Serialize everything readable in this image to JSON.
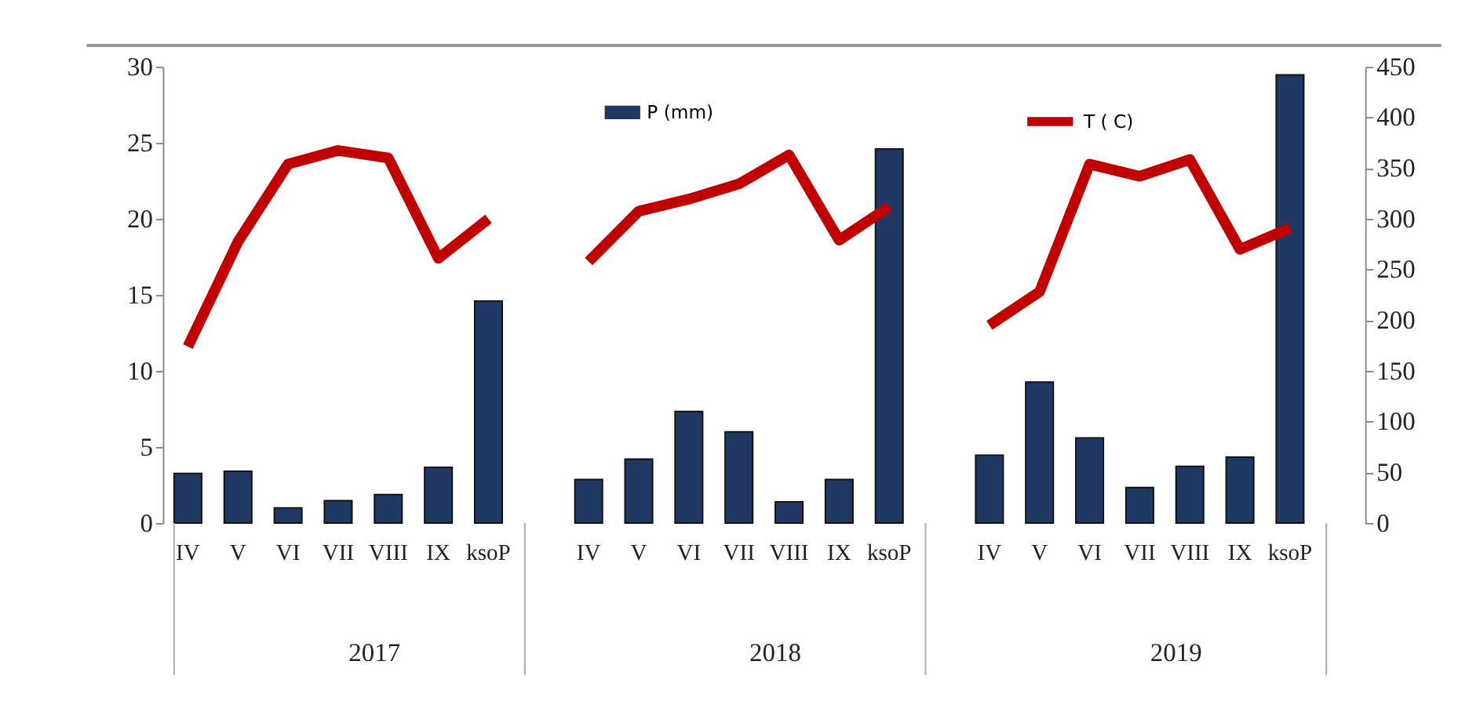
{
  "chart_data": {
    "type": "bar",
    "categories": [
      "IV",
      "V",
      "VI",
      "VII",
      "VIII",
      "IX",
      "ksoP",
      null,
      "IV",
      "V",
      "VI",
      "VII",
      "VIII",
      "IX",
      "ksoP",
      null,
      "IV",
      "V",
      "VI",
      "VII",
      "VIII",
      "IX",
      "ksoP",
      null
    ],
    "series": [
      {
        "name": "P (mm)",
        "axis": "y2",
        "color": "#203864",
        "values": [
          49,
          51,
          15,
          22,
          28,
          55,
          219,
          null,
          43,
          63,
          110,
          90,
          21,
          43,
          369,
          null,
          67,
          139,
          84,
          35,
          56,
          65,
          442,
          null
        ]
      },
      {
        "name": "T ( C)",
        "type": "line",
        "color": "#c00000",
        "values": [
          11.6,
          18.5,
          23.6,
          24.5,
          24.0,
          17.4,
          20.0,
          null,
          17.2,
          20.5,
          21.3,
          22.3,
          24.2,
          18.6,
          20.8,
          null,
          13.0,
          15.2,
          23.6,
          22.8,
          23.9,
          18.0,
          19.4,
          null
        ]
      }
    ],
    "ylim": [
      0,
      30
    ],
    "yticks": [
      0,
      5,
      10,
      15,
      20,
      25,
      30
    ],
    "y2lim": [
      0,
      450
    ],
    "y2ticks": [
      0,
      50,
      100,
      150,
      200,
      250,
      300,
      350,
      400,
      450
    ],
    "annotations": [
      "2017",
      "2018",
      "2019"
    ],
    "legend": "top",
    "grid": false
  }
}
